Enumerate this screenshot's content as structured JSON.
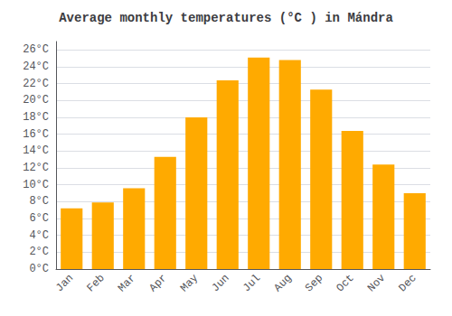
{
  "chart_data": {
    "type": "bar",
    "title": "Average monthly temperatures (°C ) in Mándra",
    "categories": [
      "Jan",
      "Feb",
      "Mar",
      "Apr",
      "May",
      "Jun",
      "Jul",
      "Aug",
      "Sep",
      "Oct",
      "Nov",
      "Dec"
    ],
    "values": [
      7.2,
      7.9,
      9.6,
      13.3,
      18.0,
      22.4,
      25.1,
      24.8,
      21.3,
      16.4,
      12.4,
      9.0
    ],
    "color": "#FFAA00",
    "ylim": [
      0,
      27
    ],
    "yticks": [
      {
        "value": 0,
        "label": "0°C"
      },
      {
        "value": 2,
        "label": "2°C"
      },
      {
        "value": 4,
        "label": "4°C"
      },
      {
        "value": 6,
        "label": "6°C"
      },
      {
        "value": 8,
        "label": "8°C"
      },
      {
        "value": 10,
        "label": "10°C"
      },
      {
        "value": 12,
        "label": "12°C"
      },
      {
        "value": 14,
        "label": "14°C"
      },
      {
        "value": 16,
        "label": "16°C"
      },
      {
        "value": 18,
        "label": "18°C"
      },
      {
        "value": 20,
        "label": "20°C"
      },
      {
        "value": 22,
        "label": "22°C"
      },
      {
        "value": 24,
        "label": "24°C"
      },
      {
        "value": 26,
        "label": "26°C"
      }
    ],
    "grid": true
  }
}
